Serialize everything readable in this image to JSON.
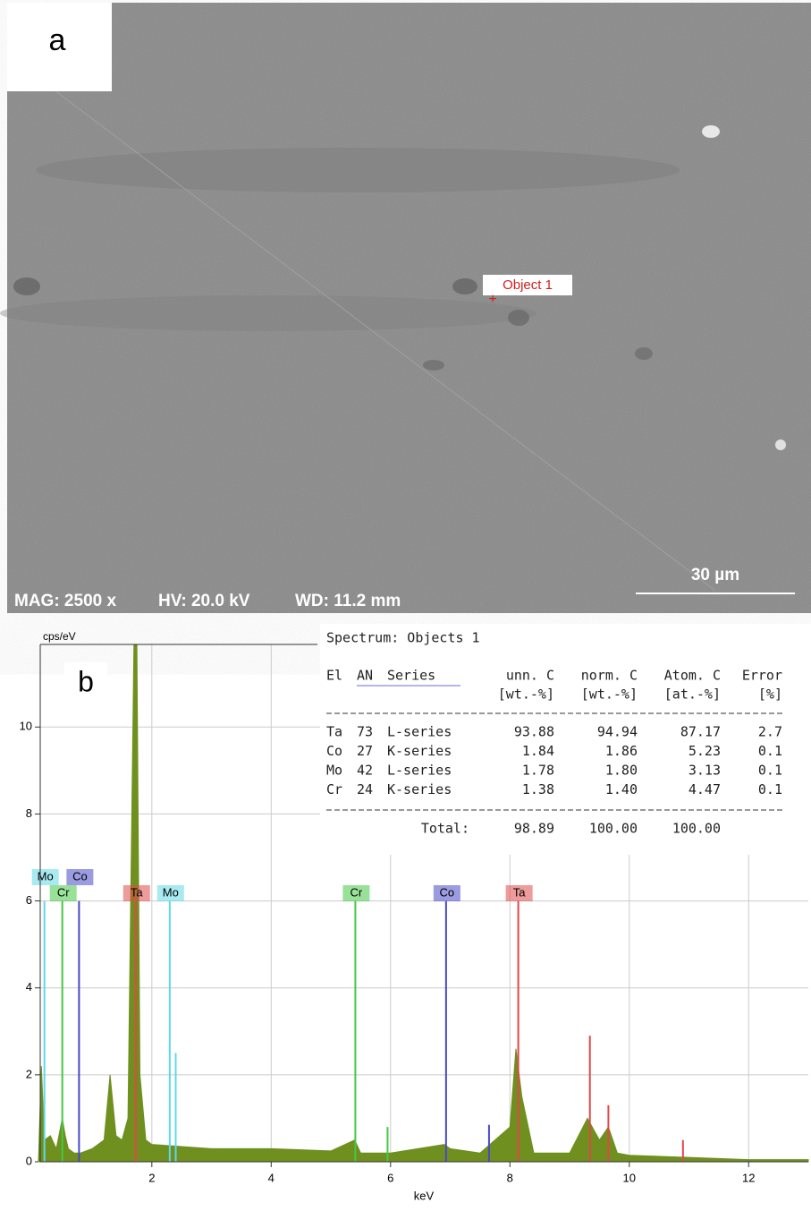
{
  "panel_a": {
    "label": "a",
    "annotation": "Object 1",
    "scale_bar": "30 µm",
    "info": [
      "MAG: 2500 x",
      "HV: 20.0 kV",
      "WD: 11.2 mm"
    ]
  },
  "chart_data": {
    "type": "area",
    "label": "b",
    "y_label": "cps/eV",
    "x_label": "keV",
    "x": [
      0.1,
      0.15,
      0.2,
      0.3,
      0.4,
      0.5,
      0.55,
      0.6,
      0.7,
      0.8,
      1.0,
      1.2,
      1.3,
      1.4,
      1.5,
      1.6,
      1.7,
      1.75,
      1.8,
      1.9,
      2.0,
      2.5,
      3,
      4,
      5,
      5.4,
      5.5,
      6,
      6.9,
      7,
      7.5,
      8,
      8.1,
      8.2,
      8.4,
      9,
      9.3,
      9.5,
      9.65,
      9.8,
      10,
      11,
      12,
      13
    ],
    "values": [
      0,
      2.2,
      0.5,
      0.6,
      0.3,
      1.0,
      0.6,
      0.3,
      0.2,
      0.2,
      0.3,
      0.5,
      2.0,
      0.6,
      0.5,
      1.0,
      11.9,
      11.9,
      2.0,
      0.5,
      0.4,
      0.35,
      0.3,
      0.3,
      0.25,
      0.5,
      0.2,
      0.2,
      0.4,
      0.3,
      0.2,
      0.8,
      2.6,
      1.5,
      0.2,
      0.2,
      1.0,
      0.5,
      0.8,
      0.2,
      0.15,
      0.1,
      0.05,
      0.05
    ],
    "color": "#6f8f1f",
    "peaks": [
      {
        "element": "Mo",
        "color": "#5fd8e8",
        "x": 0.2,
        "value": 6
      },
      {
        "element": "Cr",
        "color": "#45c845",
        "x": 0.5,
        "value": 6
      },
      {
        "element": "Co",
        "color": "#4848c8",
        "x": 0.78,
        "value": 6
      },
      {
        "element": "Ta",
        "color": "#e04848",
        "x": 1.73,
        "value": 6
      },
      {
        "element": "Mo",
        "color": "#5fd8e8",
        "x": 2.3,
        "value": 6
      },
      {
        "element": "Cr",
        "color": "#45c845",
        "x": 5.41,
        "value": 6
      },
      {
        "element": "Co",
        "color": "#4848c8",
        "x": 6.93,
        "value": 6
      },
      {
        "element": "Ta",
        "color": "#e04848",
        "x": 8.14,
        "value": 6
      },
      {
        "element": null,
        "color": "#5fd8e8",
        "x": 2.4,
        "value": 2.5
      },
      {
        "element": null,
        "color": "#45c845",
        "x": 5.95,
        "value": 0.8
      },
      {
        "element": null,
        "color": "#4848c8",
        "x": 7.65,
        "value": 0.85
      },
      {
        "element": null,
        "color": "#e04848",
        "x": 9.34,
        "value": 2.9
      },
      {
        "element": null,
        "color": "#e04848",
        "x": 9.65,
        "value": 1.3
      },
      {
        "element": null,
        "color": "#e04848",
        "x": 10.9,
        "value": 0.5
      }
    ],
    "xlim": [
      0.13,
      13
    ],
    "ylim": [
      0,
      11.9
    ],
    "xticks": [
      2,
      4,
      6,
      8,
      10,
      12
    ],
    "yticks": [
      0,
      2,
      4,
      6,
      8,
      10
    ],
    "grid": true
  },
  "table": {
    "title": "Spectrum: Objects 1",
    "header": [
      "El",
      "AN",
      "Series",
      "unn. C",
      "norm. C",
      "Atom. C",
      "Error"
    ],
    "units": [
      "[wt.-%]",
      "[wt.-%]",
      "[at.-%]",
      "[%]"
    ],
    "rows": [
      [
        "Ta",
        "73",
        "L-series",
        "93.88",
        "94.94",
        "87.17",
        "2.7"
      ],
      [
        "Co",
        "27",
        "K-series",
        "1.84",
        "1.86",
        "5.23",
        "0.1"
      ],
      [
        "Mo",
        "42",
        "L-series",
        "1.78",
        "1.80",
        "3.13",
        "0.1"
      ],
      [
        "Cr",
        "24",
        "K-series",
        "1.38",
        "1.40",
        "4.47",
        "0.1"
      ]
    ],
    "total": [
      "Total:",
      "98.89",
      "100.00",
      "100.00"
    ]
  }
}
